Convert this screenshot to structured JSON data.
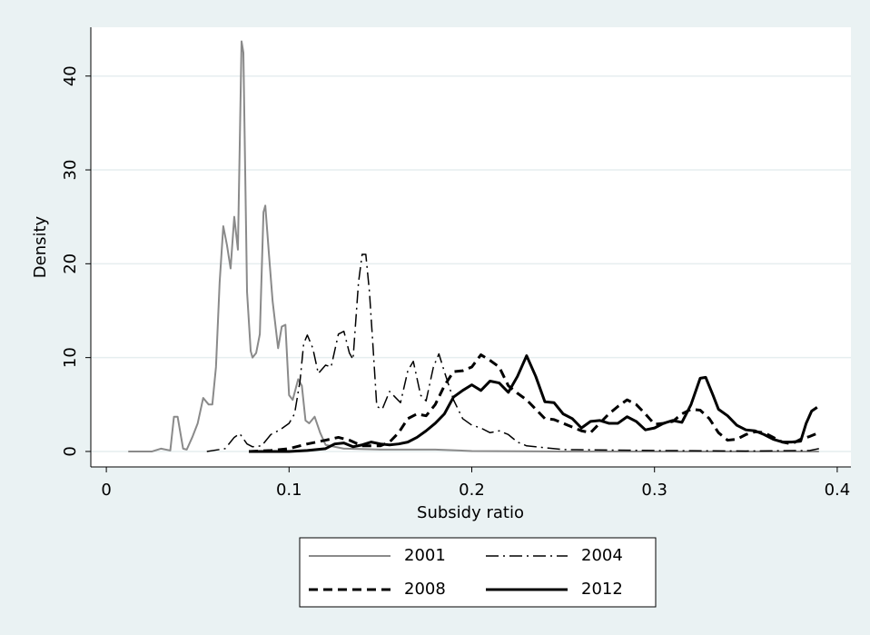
{
  "chart_data": {
    "type": "line",
    "xlabel": "Subsidy ratio",
    "ylabel": "Density",
    "xlim": [
      -0.0085,
      0.4075
    ],
    "ylim": [
      -1.65,
      45.2
    ],
    "xticks": [
      0,
      0.1,
      0.2,
      0.3,
      0.4
    ],
    "yticks": [
      0,
      10,
      20,
      30,
      40
    ],
    "grid": true,
    "legend": "bottom",
    "series": [
      {
        "name": "2001",
        "color": "#8a8a8a",
        "line_style": "solid",
        "width": 2,
        "x": [
          0.012,
          0.025,
          0.03,
          0.035,
          0.037,
          0.039,
          0.042,
          0.044,
          0.047,
          0.05,
          0.053,
          0.056,
          0.058,
          0.06,
          0.062,
          0.064,
          0.066,
          0.068,
          0.07,
          0.072,
          0.074,
          0.075,
          0.077,
          0.079,
          0.08,
          0.082,
          0.084,
          0.086,
          0.087,
          0.089,
          0.091,
          0.094,
          0.096,
          0.098,
          0.1,
          0.102,
          0.105,
          0.107,
          0.109,
          0.111,
          0.114,
          0.117,
          0.12,
          0.13,
          0.15,
          0.18,
          0.2,
          0.25,
          0.3,
          0.39
        ],
        "values": [
          0,
          0,
          0.3,
          0.1,
          3.7,
          3.7,
          0.3,
          0.2,
          1.5,
          3,
          5.7,
          5,
          5,
          9,
          18,
          24,
          22,
          19.5,
          25,
          21.5,
          43.7,
          42.5,
          17,
          10.7,
          10,
          10.5,
          12.5,
          25.5,
          26.2,
          21,
          16,
          11,
          13.3,
          13.5,
          6,
          5.5,
          7.7,
          7,
          3.3,
          3,
          3.7,
          2,
          0.7,
          0.3,
          0.2,
          0.2,
          0.05,
          0,
          0,
          0
        ]
      },
      {
        "name": "2004",
        "color": "#000000",
        "line_style": "dash-dot",
        "width": 1.5,
        "x": [
          0.055,
          0.065,
          0.07,
          0.073,
          0.077,
          0.08,
          0.085,
          0.09,
          0.095,
          0.1,
          0.103,
          0.106,
          0.108,
          0.11,
          0.113,
          0.116,
          0.12,
          0.123,
          0.127,
          0.13,
          0.133,
          0.135,
          0.138,
          0.14,
          0.142,
          0.144,
          0.146,
          0.148,
          0.151,
          0.155,
          0.158,
          0.161,
          0.165,
          0.168,
          0.172,
          0.175,
          0.179,
          0.182,
          0.185,
          0.19,
          0.195,
          0.2,
          0.205,
          0.21,
          0.215,
          0.22,
          0.225,
          0.23,
          0.24,
          0.25,
          0.3,
          0.35,
          0.385,
          0.39
        ],
        "values": [
          0,
          0.3,
          1.5,
          1.9,
          0.8,
          0.5,
          0.6,
          1.8,
          2.3,
          3,
          4,
          7.5,
          11.5,
          12.4,
          11,
          8.3,
          9.2,
          9,
          12.5,
          12.8,
          10.5,
          9.8,
          18,
          21,
          21,
          17,
          11,
          4.8,
          4.5,
          6.4,
          5.8,
          5.2,
          8.6,
          9.6,
          6,
          5.4,
          9,
          10.4,
          8.5,
          5.5,
          3.5,
          2.8,
          2.5,
          2,
          2.2,
          1.8,
          1,
          0.6,
          0.4,
          0.2,
          0.1,
          0.05,
          0.1,
          0.3
        ]
      },
      {
        "name": "2008",
        "color": "#000000",
        "line_style": "dash",
        "width": 3,
        "x": [
          0.078,
          0.09,
          0.1,
          0.11,
          0.12,
          0.127,
          0.133,
          0.14,
          0.15,
          0.155,
          0.16,
          0.165,
          0.17,
          0.175,
          0.18,
          0.185,
          0.19,
          0.195,
          0.2,
          0.205,
          0.21,
          0.215,
          0.22,
          0.225,
          0.23,
          0.235,
          0.24,
          0.245,
          0.25,
          0.26,
          0.265,
          0.27,
          0.275,
          0.28,
          0.285,
          0.29,
          0.295,
          0.3,
          0.305,
          0.31,
          0.315,
          0.32,
          0.325,
          0.33,
          0.335,
          0.34,
          0.345,
          0.35,
          0.355,
          0.36,
          0.365,
          0.37,
          0.375,
          0.38,
          0.385,
          0.39
        ],
        "values": [
          0,
          0.1,
          0.3,
          0.8,
          1.2,
          1.5,
          1.2,
          0.6,
          0.6,
          1,
          2,
          3.5,
          4,
          3.8,
          5,
          7,
          8.5,
          8.6,
          9,
          10.3,
          9.7,
          9,
          7,
          6.2,
          5.5,
          4.5,
          3.5,
          3.4,
          3,
          2.2,
          2,
          3,
          4,
          4.8,
          5.5,
          5,
          4,
          2.9,
          3,
          3.2,
          4,
          4.5,
          4.4,
          3.5,
          2,
          1.2,
          1.3,
          1.8,
          2.1,
          2,
          1.5,
          1,
          0.8,
          1.3,
          1.6,
          2
        ]
      },
      {
        "name": "2012",
        "color": "#000000",
        "line_style": "solid",
        "width": 3,
        "x": [
          0.078,
          0.1,
          0.11,
          0.12,
          0.125,
          0.13,
          0.135,
          0.14,
          0.145,
          0.15,
          0.155,
          0.16,
          0.165,
          0.17,
          0.175,
          0.18,
          0.185,
          0.19,
          0.195,
          0.2,
          0.205,
          0.21,
          0.215,
          0.22,
          0.225,
          0.23,
          0.235,
          0.24,
          0.245,
          0.25,
          0.255,
          0.26,
          0.265,
          0.27,
          0.275,
          0.28,
          0.285,
          0.29,
          0.295,
          0.3,
          0.305,
          0.31,
          0.315,
          0.32,
          0.325,
          0.328,
          0.332,
          0.335,
          0.34,
          0.345,
          0.35,
          0.355,
          0.36,
          0.365,
          0.37,
          0.375,
          0.38,
          0.383,
          0.386,
          0.389
        ],
        "values": [
          0,
          0,
          0.1,
          0.3,
          0.8,
          0.9,
          0.5,
          0.7,
          1,
          0.8,
          0.7,
          0.8,
          1,
          1.5,
          2.2,
          3,
          4,
          5.8,
          6.5,
          7.1,
          6.5,
          7.5,
          7.3,
          6.3,
          8,
          10.2,
          8,
          5.3,
          5.2,
          4,
          3.5,
          2.5,
          3.2,
          3.3,
          3,
          3,
          3.7,
          3.2,
          2.3,
          2.5,
          3,
          3.3,
          3.1,
          5,
          7.8,
          7.9,
          6,
          4.5,
          3.8,
          2.8,
          2.3,
          2.2,
          1.8,
          1.3,
          1,
          1,
          1.1,
          3,
          4.3,
          4.7
        ]
      }
    ]
  }
}
